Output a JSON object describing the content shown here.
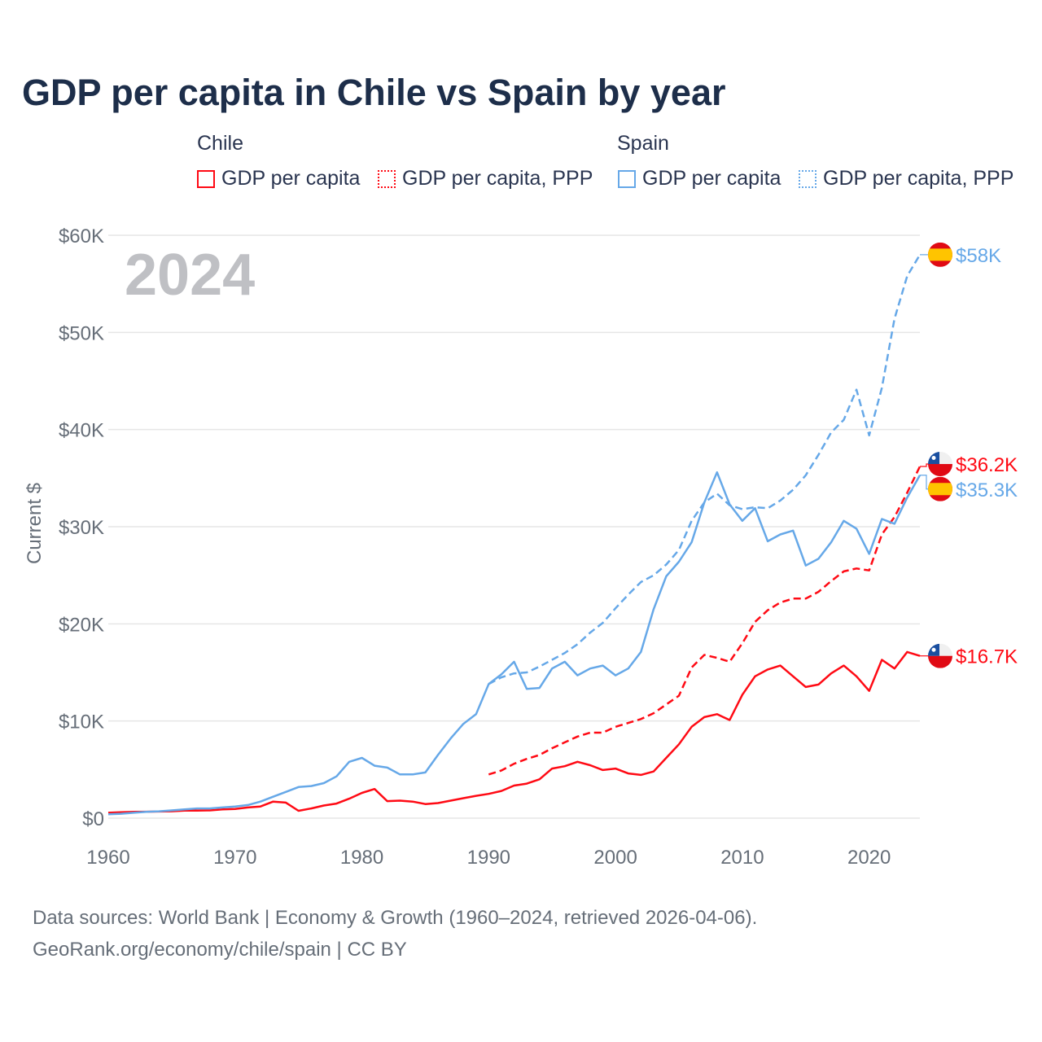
{
  "title": "GDP per capita in Chile vs Spain by year",
  "legend": {
    "groups": [
      {
        "name": "Chile",
        "items": [
          "GDP per capita",
          "GDP per capita, PPP"
        ]
      },
      {
        "name": "Spain",
        "items": [
          "GDP per capita",
          "GDP per capita, PPP"
        ]
      }
    ]
  },
  "colors": {
    "chile": "#ff0a14",
    "spain": "#66a8e8",
    "grid": "#e6e6e6",
    "watermark": "#bfc0c4"
  },
  "footer": {
    "line1": "Data sources: World Bank | Economy & Growth (1960–2024, retrieved 2026-04-06).",
    "line2": "GeoRank.org/economy/chile/spain | CC BY"
  },
  "chart_data": {
    "type": "line",
    "title": "GDP per capita in Chile vs Spain by year",
    "watermark_year": "2024",
    "xlabel": "",
    "ylabel": "Current $",
    "xlim": [
      1960,
      2024
    ],
    "ylim": [
      0,
      60000
    ],
    "x_ticks": [
      "1960",
      "1970",
      "1980",
      "1990",
      "2000",
      "2010",
      "2020"
    ],
    "y_ticks": [
      "$0",
      "$10K",
      "$20K",
      "$30K",
      "$40K",
      "$50K",
      "$60K"
    ],
    "grid": true,
    "series": [
      {
        "name": "Chile GDP per capita",
        "country": "chile",
        "dashed": false,
        "start": 1960,
        "end_label": "$16.7K",
        "values": [
          0.55,
          0.6,
          0.65,
          0.66,
          0.68,
          0.7,
          0.78,
          0.78,
          0.8,
          0.9,
          0.95,
          1.1,
          1.2,
          1.7,
          1.6,
          0.75,
          1.0,
          1.3,
          1.5,
          2.0,
          2.6,
          3.0,
          1.75,
          1.8,
          1.7,
          1.45,
          1.55,
          1.8,
          2.05,
          2.3,
          2.5,
          2.8,
          3.35,
          3.55,
          4.0,
          5.1,
          5.35,
          5.8,
          5.45,
          4.95,
          5.1,
          4.6,
          4.45,
          4.8,
          6.2,
          7.6,
          9.4,
          10.4,
          10.7,
          10.1,
          12.7,
          14.6,
          15.3,
          15.7,
          14.6,
          13.5,
          13.75,
          14.9,
          15.7,
          14.6,
          13.1,
          16.3,
          15.4,
          17.1,
          16.7
        ]
      },
      {
        "name": "Chile GDP per capita, PPP",
        "country": "chile",
        "dashed": true,
        "start": 1990,
        "end_label": "$36.2K",
        "values": [
          4.5,
          4.9,
          5.6,
          6.1,
          6.5,
          7.2,
          7.8,
          8.4,
          8.8,
          8.8,
          9.4,
          9.8,
          10.2,
          10.8,
          11.7,
          12.6,
          15.5,
          16.8,
          16.5,
          16.1,
          18.0,
          20.2,
          21.4,
          22.2,
          22.6,
          22.6,
          23.3,
          24.4,
          25.4,
          25.7,
          25.5,
          29.2,
          31.0,
          33.5,
          36.2
        ]
      },
      {
        "name": "Spain GDP per capita",
        "country": "spain",
        "dashed": false,
        "start": 1960,
        "end_label": "$35.3K",
        "values": [
          0.4,
          0.45,
          0.55,
          0.65,
          0.7,
          0.8,
          0.9,
          1.0,
          1.0,
          1.1,
          1.2,
          1.35,
          1.7,
          2.2,
          2.7,
          3.2,
          3.3,
          3.6,
          4.3,
          5.8,
          6.2,
          5.4,
          5.2,
          4.5,
          4.5,
          4.7,
          6.5,
          8.2,
          9.7,
          10.7,
          13.8,
          14.8,
          16.1,
          13.3,
          13.4,
          15.4,
          16.1,
          14.7,
          15.4,
          15.7,
          14.7,
          15.4,
          17.1,
          21.5,
          24.9,
          26.4,
          28.4,
          32.5,
          35.6,
          32.3,
          30.6,
          31.9,
          28.5,
          29.2,
          29.6,
          26.0,
          26.7,
          28.4,
          30.6,
          29.8,
          27.2,
          30.8,
          30.3,
          33.0,
          35.3
        ]
      },
      {
        "name": "Spain GDP per capita, PPP",
        "country": "spain",
        "dashed": true,
        "start": 1990,
        "end_label": "$58K",
        "values": [
          13.8,
          14.5,
          14.9,
          15.0,
          15.6,
          16.3,
          17.0,
          17.9,
          19.1,
          20.1,
          21.6,
          23.0,
          24.3,
          25.0,
          26.1,
          27.6,
          30.6,
          32.5,
          33.4,
          32.2,
          31.8,
          32.0,
          31.9,
          32.7,
          33.8,
          35.3,
          37.4,
          39.7,
          41.0,
          44.1,
          39.4,
          44.3,
          51.4,
          55.8,
          58.0
        ]
      }
    ],
    "value_unit": "thousand current $"
  }
}
